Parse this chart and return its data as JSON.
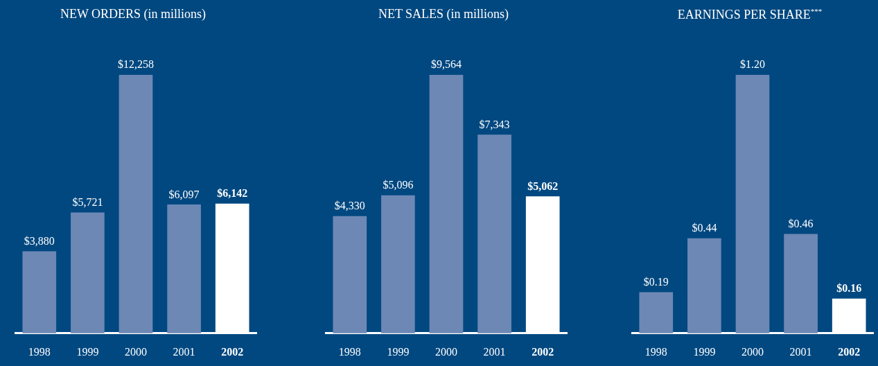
{
  "chart_data": [
    {
      "type": "bar",
      "title": "NEW ORDERS (in millions)",
      "categories": [
        "1998",
        "1999",
        "2000",
        "2001",
        "2002"
      ],
      "values": [
        3880,
        5721,
        12258,
        6097,
        6142
      ],
      "value_labels": [
        "$3,880",
        "$5,721",
        "$12,258",
        "$6,097",
        "$6,142"
      ],
      "colors": [
        "#6d88b5",
        "#6d88b5",
        "#6d88b5",
        "#6d88b5",
        "#ffffff"
      ]
    },
    {
      "type": "bar",
      "title": "NET SALES (in millions)",
      "categories": [
        "1998",
        "1999",
        "2000",
        "2001",
        "2002"
      ],
      "values": [
        4330,
        5096,
        9564,
        7343,
        5062
      ],
      "value_labels": [
        "$4,330",
        "$5,096",
        "$9,564",
        "$7,343",
        "$5,062"
      ],
      "colors": [
        "#6d88b5",
        "#6d88b5",
        "#6d88b5",
        "#6d88b5",
        "#ffffff"
      ]
    },
    {
      "type": "bar",
      "title": "EARNINGS PER SHARE$^{***}$",
      "categories": [
        "1998",
        "1999",
        "2000",
        "2001",
        "2002"
      ],
      "values": [
        0.19,
        0.44,
        1.2,
        0.46,
        0.16
      ],
      "value_labels": [
        "$0.19",
        "$0.44",
        "$1.20",
        "$0.46",
        "$0.16"
      ],
      "colors": [
        "#6d88b5",
        "#6d88b5",
        "#6d88b5",
        "#6d88b5",
        "#ffffff"
      ]
    }
  ]
}
